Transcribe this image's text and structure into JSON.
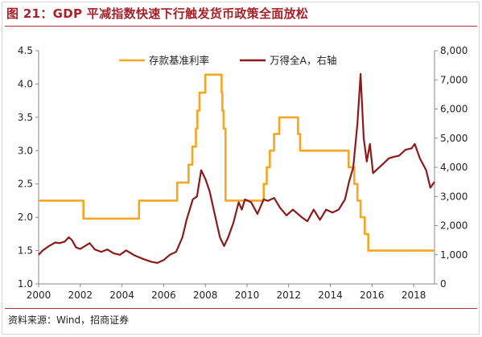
{
  "title": "图 21：GDP 平减指数快速下行触发货币政策全面放松",
  "source": "资料来源：Wind，招商证券",
  "chart_data": {
    "type": "line",
    "title": "图 21：GDP 平减指数快速下行触发货币政策全面放松",
    "xlabel": "",
    "ylabel": "",
    "xlim": [
      2000,
      2019.0
    ],
    "x_ticks": [
      "2000",
      "2002",
      "2004",
      "2006",
      "2008",
      "2010",
      "2012",
      "2014",
      "2016",
      "2018"
    ],
    "y_left": {
      "range": [
        1.0,
        4.5
      ],
      "ticks": [
        "1.0",
        "1.5",
        "2.0",
        "2.5",
        "3.0",
        "3.5",
        "4.0",
        "4.5"
      ]
    },
    "y_right": {
      "range": [
        0,
        8000
      ],
      "ticks": [
        "0",
        "1,000",
        "2,000",
        "3,000",
        "4,000",
        "5,000",
        "6,000",
        "7,000",
        "8,000"
      ]
    },
    "legend_position": "top-center",
    "grid": false,
    "series": [
      {
        "name": "存款基准利率",
        "axis": "left",
        "color": "#f5a623",
        "step": true,
        "points": [
          [
            2000.0,
            2.25
          ],
          [
            2002.15,
            1.98
          ],
          [
            2004.82,
            2.25
          ],
          [
            2006.65,
            2.52
          ],
          [
            2007.2,
            2.79
          ],
          [
            2007.38,
            3.06
          ],
          [
            2007.55,
            3.33
          ],
          [
            2007.62,
            3.6
          ],
          [
            2007.72,
            3.87
          ],
          [
            2008.0,
            4.14
          ],
          [
            2008.78,
            3.87
          ],
          [
            2008.82,
            3.6
          ],
          [
            2008.88,
            3.33
          ],
          [
            2008.97,
            2.25
          ],
          [
            2010.8,
            2.5
          ],
          [
            2010.95,
            2.75
          ],
          [
            2011.1,
            3.0
          ],
          [
            2011.3,
            3.25
          ],
          [
            2011.55,
            3.5
          ],
          [
            2012.45,
            3.25
          ],
          [
            2012.55,
            3.0
          ],
          [
            2014.88,
            2.75
          ],
          [
            2015.15,
            2.5
          ],
          [
            2015.3,
            2.25
          ],
          [
            2015.45,
            2.0
          ],
          [
            2015.65,
            1.75
          ],
          [
            2015.82,
            1.5
          ],
          [
            2019.0,
            1.5
          ]
        ]
      },
      {
        "name": "万得全A，右轴",
        "axis": "right",
        "color": "#8b1a1a",
        "step": false,
        "points": [
          [
            2000.0,
            1000
          ],
          [
            2000.2,
            1150
          ],
          [
            2000.5,
            1300
          ],
          [
            2000.8,
            1420
          ],
          [
            2001.0,
            1400
          ],
          [
            2001.25,
            1450
          ],
          [
            2001.45,
            1600
          ],
          [
            2001.6,
            1500
          ],
          [
            2001.8,
            1250
          ],
          [
            2002.0,
            1200
          ],
          [
            2002.45,
            1400
          ],
          [
            2002.7,
            1180
          ],
          [
            2003.0,
            1100
          ],
          [
            2003.3,
            1180
          ],
          [
            2003.6,
            1050
          ],
          [
            2003.9,
            1000
          ],
          [
            2004.2,
            1150
          ],
          [
            2004.6,
            980
          ],
          [
            2005.0,
            860
          ],
          [
            2005.4,
            760
          ],
          [
            2005.7,
            720
          ],
          [
            2006.0,
            820
          ],
          [
            2006.3,
            1000
          ],
          [
            2006.6,
            1100
          ],
          [
            2006.9,
            1600
          ],
          [
            2007.1,
            2200
          ],
          [
            2007.4,
            2900
          ],
          [
            2007.6,
            3000
          ],
          [
            2007.8,
            3900
          ],
          [
            2008.0,
            3600
          ],
          [
            2008.2,
            3200
          ],
          [
            2008.45,
            2400
          ],
          [
            2008.7,
            1600
          ],
          [
            2008.9,
            1300
          ],
          [
            2009.1,
            1600
          ],
          [
            2009.35,
            2100
          ],
          [
            2009.6,
            2800
          ],
          [
            2009.75,
            2550
          ],
          [
            2009.9,
            2900
          ],
          [
            2010.2,
            2800
          ],
          [
            2010.5,
            2400
          ],
          [
            2010.8,
            2900
          ],
          [
            2011.0,
            2850
          ],
          [
            2011.3,
            2950
          ],
          [
            2011.6,
            2600
          ],
          [
            2011.9,
            2350
          ],
          [
            2012.2,
            2550
          ],
          [
            2012.6,
            2300
          ],
          [
            2012.9,
            2150
          ],
          [
            2013.2,
            2550
          ],
          [
            2013.5,
            2200
          ],
          [
            2013.8,
            2550
          ],
          [
            2014.1,
            2450
          ],
          [
            2014.4,
            2550
          ],
          [
            2014.7,
            2900
          ],
          [
            2014.9,
            3500
          ],
          [
            2015.1,
            4000
          ],
          [
            2015.3,
            5500
          ],
          [
            2015.45,
            7200
          ],
          [
            2015.6,
            5000
          ],
          [
            2015.75,
            4200
          ],
          [
            2015.9,
            4800
          ],
          [
            2016.05,
            3800
          ],
          [
            2016.2,
            3900
          ],
          [
            2016.5,
            4100
          ],
          [
            2016.8,
            4300
          ],
          [
            2017.0,
            4350
          ],
          [
            2017.3,
            4400
          ],
          [
            2017.6,
            4600
          ],
          [
            2017.9,
            4650
          ],
          [
            2018.05,
            4800
          ],
          [
            2018.3,
            4300
          ],
          [
            2018.6,
            3900
          ],
          [
            2018.8,
            3300
          ],
          [
            2019.0,
            3500
          ]
        ]
      }
    ]
  }
}
